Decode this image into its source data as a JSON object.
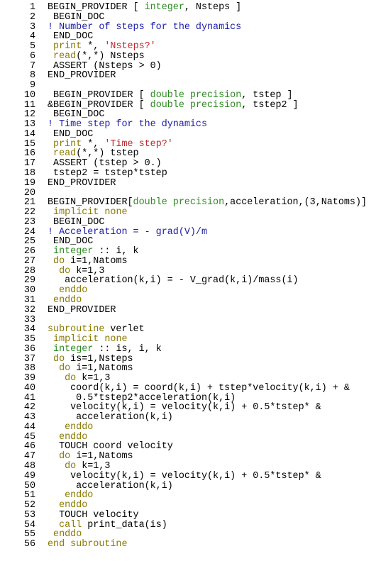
{
  "code": {
    "lines": [
      {
        "number": 1,
        "tokens": [
          {
            "text": "BEGIN_PROVIDER [ ",
            "color": "#000000"
          },
          {
            "text": "integer",
            "color": "#2e8b22"
          },
          {
            "text": ", Nsteps ]",
            "color": "#000000"
          }
        ]
      },
      {
        "number": 2,
        "tokens": [
          {
            "text": " BEGIN_DOC",
            "color": "#000000"
          }
        ]
      },
      {
        "number": 3,
        "tokens": [
          {
            "text": "! Number of steps for the dynamics",
            "color": "#1c1ca8"
          }
        ]
      },
      {
        "number": 4,
        "tokens": [
          {
            "text": " END_DOC",
            "color": "#000000"
          }
        ]
      },
      {
        "number": 5,
        "tokens": [
          {
            "text": " ",
            "color": "#000000"
          },
          {
            "text": "print",
            "color": "#8a7a00"
          },
          {
            "text": " *, ",
            "color": "#000000"
          },
          {
            "text": "'Nsteps?'",
            "color": "#c0282a"
          }
        ]
      },
      {
        "number": 6,
        "tokens": [
          {
            "text": " ",
            "color": "#000000"
          },
          {
            "text": "read",
            "color": "#8a7a00"
          },
          {
            "text": "(*,*) Nsteps",
            "color": "#000000"
          }
        ]
      },
      {
        "number": 7,
        "tokens": [
          {
            "text": " ASSERT (Nsteps > 0)",
            "color": "#000000"
          }
        ]
      },
      {
        "number": 8,
        "tokens": [
          {
            "text": "END_PROVIDER",
            "color": "#000000"
          }
        ]
      },
      {
        "number": 9,
        "tokens": []
      },
      {
        "number": 10,
        "tokens": [
          {
            "text": " BEGIN_PROVIDER [ ",
            "color": "#000000"
          },
          {
            "text": "double precision",
            "color": "#2e8b22"
          },
          {
            "text": ", tstep ]",
            "color": "#000000"
          }
        ]
      },
      {
        "number": 11,
        "tokens": [
          {
            "text": "&BEGIN_PROVIDER [ ",
            "color": "#000000"
          },
          {
            "text": "double precision",
            "color": "#2e8b22"
          },
          {
            "text": ", tstep2 ]",
            "color": "#000000"
          }
        ]
      },
      {
        "number": 12,
        "tokens": [
          {
            "text": " BEGIN_DOC",
            "color": "#000000"
          }
        ]
      },
      {
        "number": 13,
        "tokens": [
          {
            "text": "! Time step for the dynamics",
            "color": "#1c1ca8"
          }
        ]
      },
      {
        "number": 14,
        "tokens": [
          {
            "text": " END_DOC",
            "color": "#000000"
          }
        ]
      },
      {
        "number": 15,
        "tokens": [
          {
            "text": " ",
            "color": "#000000"
          },
          {
            "text": "print",
            "color": "#8a7a00"
          },
          {
            "text": " *, ",
            "color": "#000000"
          },
          {
            "text": "'Time step?'",
            "color": "#c0282a"
          }
        ]
      },
      {
        "number": 16,
        "tokens": [
          {
            "text": " ",
            "color": "#000000"
          },
          {
            "text": "read",
            "color": "#8a7a00"
          },
          {
            "text": "(*,*) tstep",
            "color": "#000000"
          }
        ]
      },
      {
        "number": 17,
        "tokens": [
          {
            "text": " ASSERT (tstep > 0.)",
            "color": "#000000"
          }
        ]
      },
      {
        "number": 18,
        "tokens": [
          {
            "text": " tstep2 = tstep*tstep",
            "color": "#000000"
          }
        ]
      },
      {
        "number": 19,
        "tokens": [
          {
            "text": "END_PROVIDER",
            "color": "#000000"
          }
        ]
      },
      {
        "number": 20,
        "tokens": []
      },
      {
        "number": 21,
        "tokens": [
          {
            "text": "BEGIN_PROVIDER[",
            "color": "#000000"
          },
          {
            "text": "double precision",
            "color": "#2e8b22"
          },
          {
            "text": ",acceleration,(3,Natoms)]",
            "color": "#000000"
          }
        ]
      },
      {
        "number": 22,
        "tokens": [
          {
            "text": " ",
            "color": "#000000"
          },
          {
            "text": "implicit none",
            "color": "#8a7a00"
          }
        ]
      },
      {
        "number": 23,
        "tokens": [
          {
            "text": " BEGIN_DOC",
            "color": "#000000"
          }
        ]
      },
      {
        "number": 24,
        "tokens": [
          {
            "text": "! Acceleration = - grad(V)/m",
            "color": "#1c1ca8"
          }
        ]
      },
      {
        "number": 25,
        "tokens": [
          {
            "text": " END_DOC",
            "color": "#000000"
          }
        ]
      },
      {
        "number": 26,
        "tokens": [
          {
            "text": " ",
            "color": "#000000"
          },
          {
            "text": "integer",
            "color": "#2e8b22"
          },
          {
            "text": " :: i, k",
            "color": "#000000"
          }
        ]
      },
      {
        "number": 27,
        "tokens": [
          {
            "text": " ",
            "color": "#000000"
          },
          {
            "text": "do",
            "color": "#8a7a00"
          },
          {
            "text": " i=1,Natoms",
            "color": "#000000"
          }
        ]
      },
      {
        "number": 28,
        "tokens": [
          {
            "text": "  ",
            "color": "#000000"
          },
          {
            "text": "do",
            "color": "#8a7a00"
          },
          {
            "text": " k=1,3",
            "color": "#000000"
          }
        ]
      },
      {
        "number": 29,
        "tokens": [
          {
            "text": "   acceleration(k,i) = - V_grad(k,i)/mass(i)",
            "color": "#000000"
          }
        ]
      },
      {
        "number": 30,
        "tokens": [
          {
            "text": "  ",
            "color": "#000000"
          },
          {
            "text": "enddo",
            "color": "#8a7a00"
          }
        ]
      },
      {
        "number": 31,
        "tokens": [
          {
            "text": " ",
            "color": "#000000"
          },
          {
            "text": "enddo",
            "color": "#8a7a00"
          }
        ]
      },
      {
        "number": 32,
        "tokens": [
          {
            "text": "END_PROVIDER",
            "color": "#000000"
          }
        ]
      },
      {
        "number": 33,
        "tokens": []
      },
      {
        "number": 34,
        "tokens": [
          {
            "text": "subroutine",
            "color": "#8a7a00"
          },
          {
            "text": " verlet",
            "color": "#000000"
          }
        ]
      },
      {
        "number": 35,
        "tokens": [
          {
            "text": " ",
            "color": "#000000"
          },
          {
            "text": "implicit none",
            "color": "#8a7a00"
          }
        ]
      },
      {
        "number": 36,
        "tokens": [
          {
            "text": " ",
            "color": "#000000"
          },
          {
            "text": "integer",
            "color": "#2e8b22"
          },
          {
            "text": " :: is, i, k",
            "color": "#000000"
          }
        ]
      },
      {
        "number": 37,
        "tokens": [
          {
            "text": " ",
            "color": "#000000"
          },
          {
            "text": "do",
            "color": "#8a7a00"
          },
          {
            "text": " is=1,Nsteps",
            "color": "#000000"
          }
        ]
      },
      {
        "number": 38,
        "tokens": [
          {
            "text": "  ",
            "color": "#000000"
          },
          {
            "text": "do",
            "color": "#8a7a00"
          },
          {
            "text": " i=1,Natoms",
            "color": "#000000"
          }
        ]
      },
      {
        "number": 39,
        "tokens": [
          {
            "text": "   ",
            "color": "#000000"
          },
          {
            "text": "do",
            "color": "#8a7a00"
          },
          {
            "text": " k=1,3",
            "color": "#000000"
          }
        ]
      },
      {
        "number": 40,
        "tokens": [
          {
            "text": "    coord(k,i) = coord(k,i) + tstep*velocity(k,i) + &",
            "color": "#000000"
          }
        ]
      },
      {
        "number": 41,
        "tokens": [
          {
            "text": "     0.5*tstep2*acceleration(k,i)",
            "color": "#000000"
          }
        ]
      },
      {
        "number": 42,
        "tokens": [
          {
            "text": "    velocity(k,i) = velocity(k,i) + 0.5*tstep* &",
            "color": "#000000"
          }
        ]
      },
      {
        "number": 43,
        "tokens": [
          {
            "text": "     acceleration(k,i)",
            "color": "#000000"
          }
        ]
      },
      {
        "number": 44,
        "tokens": [
          {
            "text": "   ",
            "color": "#000000"
          },
          {
            "text": "enddo",
            "color": "#8a7a00"
          }
        ]
      },
      {
        "number": 45,
        "tokens": [
          {
            "text": "  ",
            "color": "#000000"
          },
          {
            "text": "enddo",
            "color": "#8a7a00"
          }
        ]
      },
      {
        "number": 46,
        "tokens": [
          {
            "text": "  TOUCH coord velocity",
            "color": "#000000"
          }
        ]
      },
      {
        "number": 47,
        "tokens": [
          {
            "text": "  ",
            "color": "#000000"
          },
          {
            "text": "do",
            "color": "#8a7a00"
          },
          {
            "text": " i=1,Natoms",
            "color": "#000000"
          }
        ]
      },
      {
        "number": 48,
        "tokens": [
          {
            "text": "   ",
            "color": "#000000"
          },
          {
            "text": "do",
            "color": "#8a7a00"
          },
          {
            "text": " k=1,3",
            "color": "#000000"
          }
        ]
      },
      {
        "number": 49,
        "tokens": [
          {
            "text": "    velocity(k,i) = velocity(k,i) + 0.5*tstep* &",
            "color": "#000000"
          }
        ]
      },
      {
        "number": 50,
        "tokens": [
          {
            "text": "     acceleration(k,i)",
            "color": "#000000"
          }
        ]
      },
      {
        "number": 51,
        "tokens": [
          {
            "text": "   ",
            "color": "#000000"
          },
          {
            "text": "enddo",
            "color": "#8a7a00"
          }
        ]
      },
      {
        "number": 52,
        "tokens": [
          {
            "text": "  ",
            "color": "#000000"
          },
          {
            "text": "enddo",
            "color": "#8a7a00"
          }
        ]
      },
      {
        "number": 53,
        "tokens": [
          {
            "text": "  TOUCH velocity",
            "color": "#000000"
          }
        ]
      },
      {
        "number": 54,
        "tokens": [
          {
            "text": "  ",
            "color": "#000000"
          },
          {
            "text": "call",
            "color": "#8a7a00"
          },
          {
            "text": " print_data(is)",
            "color": "#000000"
          }
        ]
      },
      {
        "number": 55,
        "tokens": [
          {
            "text": " ",
            "color": "#000000"
          },
          {
            "text": "enddo",
            "color": "#8a7a00"
          }
        ]
      },
      {
        "number": 56,
        "tokens": [
          {
            "text": "end subroutine",
            "color": "#8a7a00"
          }
        ]
      }
    ]
  }
}
